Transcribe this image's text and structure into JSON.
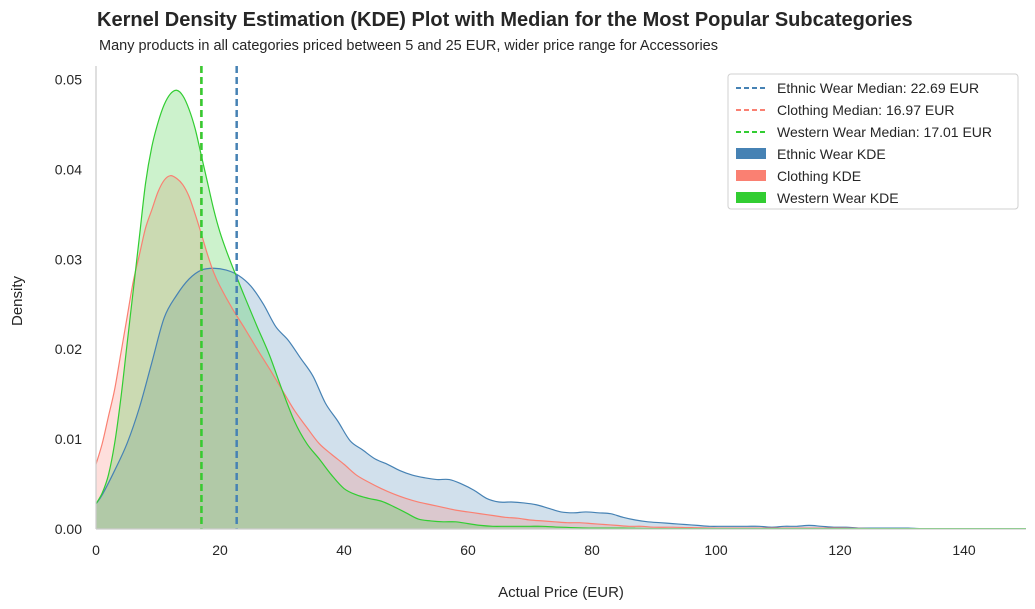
{
  "chart_data": {
    "type": "area",
    "title": "Kernel Density Estimation (KDE) Plot with Median for the Most Popular Subcategories",
    "subtitle": "Many products in all categories priced between 5 and 25 EUR, wider price range for Accessories",
    "xlabel": "Actual Price (EUR)",
    "ylabel": "Density",
    "xlim": [
      0,
      150
    ],
    "ylim": [
      0,
      0.0515
    ],
    "xticks": [
      0,
      20,
      40,
      60,
      80,
      100,
      120,
      140
    ],
    "xtick_labels": [
      "0",
      "20",
      "40",
      "60",
      "80",
      "100",
      "120",
      "140"
    ],
    "yticks": [
      0,
      0.01,
      0.02,
      0.03,
      0.04,
      0.05
    ],
    "ytick_labels": [
      "0.00",
      "0.01",
      "0.02",
      "0.03",
      "0.04",
      "0.05"
    ],
    "legend_position": "top-right",
    "series": [
      {
        "name": "Ethnic Wear KDE",
        "color": "#4682b4",
        "median": 22.69,
        "median_label": "Ethnic Wear Median: 22.69 EUR",
        "x": [
          0,
          1,
          3,
          5,
          7,
          9,
          11,
          13,
          15,
          17,
          19,
          21,
          23,
          25,
          27,
          29,
          31,
          33,
          35,
          37,
          39,
          41,
          43,
          45,
          47,
          49,
          51,
          53,
          55,
          57,
          59,
          61,
          63,
          65,
          67,
          69,
          71,
          73,
          75,
          77,
          79,
          81,
          83,
          85,
          87,
          89,
          91,
          93,
          95,
          97,
          99,
          101,
          103,
          105,
          107,
          109,
          111,
          113,
          115,
          117,
          119,
          121,
          123,
          125,
          127,
          129,
          131,
          133,
          135,
          137,
          139,
          141,
          143,
          145,
          147,
          150
        ],
        "values": [
          0.0028,
          0.0038,
          0.0065,
          0.0095,
          0.0135,
          0.0185,
          0.0235,
          0.026,
          0.0278,
          0.0288,
          0.029,
          0.0288,
          0.0282,
          0.027,
          0.025,
          0.0225,
          0.021,
          0.019,
          0.017,
          0.014,
          0.012,
          0.0098,
          0.0088,
          0.0078,
          0.0072,
          0.0065,
          0.006,
          0.0057,
          0.0055,
          0.0055,
          0.005,
          0.0043,
          0.0034,
          0.003,
          0.003,
          0.0029,
          0.0027,
          0.0023,
          0.0019,
          0.0018,
          0.0019,
          0.0018,
          0.0017,
          0.0013,
          0.001,
          0.0008,
          0.0007,
          0.0006,
          0.0005,
          0.0004,
          0.0003,
          0.0003,
          0.0003,
          0.0003,
          0.0003,
          0.0002,
          0.0003,
          0.0003,
          0.0004,
          0.0003,
          0.0002,
          0.0002,
          0.0001,
          0.0001,
          0.0001,
          0.0001,
          0.0001,
          5e-05,
          5e-05,
          5e-05,
          5e-05,
          5e-05,
          5e-05,
          5e-05,
          5e-05,
          5e-05
        ]
      },
      {
        "name": "Clothing KDE",
        "color": "#fa8072",
        "median": 16.97,
        "median_label": "Clothing Median: 16.97 EUR",
        "x": [
          0,
          1,
          2,
          3,
          4,
          5,
          6,
          7,
          8,
          9,
          10,
          11,
          12,
          13,
          14,
          15,
          16,
          17,
          18,
          19,
          20,
          22,
          24,
          26,
          28,
          30,
          32,
          34,
          36,
          38,
          40,
          42,
          44,
          46,
          48,
          50,
          52,
          54,
          56,
          58,
          60,
          62,
          64,
          66,
          68,
          70,
          72,
          74,
          76,
          78,
          80,
          82,
          84,
          86,
          88,
          90,
          93,
          96,
          100,
          105,
          110,
          115,
          120,
          125,
          130,
          140,
          150
        ],
        "values": [
          0.0072,
          0.0095,
          0.0125,
          0.0155,
          0.0195,
          0.0235,
          0.0275,
          0.0305,
          0.0335,
          0.0355,
          0.0375,
          0.0388,
          0.0393,
          0.039,
          0.0383,
          0.037,
          0.035,
          0.0328,
          0.0305,
          0.0285,
          0.027,
          0.0245,
          0.0223,
          0.02,
          0.0178,
          0.0155,
          0.0132,
          0.0113,
          0.0095,
          0.0083,
          0.0072,
          0.006,
          0.0052,
          0.0045,
          0.0039,
          0.0034,
          0.003,
          0.0027,
          0.0024,
          0.0021,
          0.0019,
          0.0017,
          0.0015,
          0.0013,
          0.0012,
          0.001,
          0.0009,
          0.0008,
          0.0007,
          0.0007,
          0.0006,
          0.0005,
          0.0004,
          0.0003,
          0.0003,
          0.0002,
          0.0002,
          0.00015,
          0.0001,
          0.0001,
          0.0001,
          0.0001,
          0.0001,
          5e-05,
          5e-05,
          5e-05,
          5e-05
        ]
      },
      {
        "name": "Western Wear KDE",
        "color": "#32cd32",
        "median": 17.01,
        "median_label": "Western Wear Median: 17.01 EUR",
        "x": [
          0,
          1,
          2,
          3,
          4,
          5,
          6,
          7,
          8,
          9,
          10,
          11,
          12,
          13,
          14,
          15,
          16,
          17,
          18,
          19,
          20,
          21,
          22,
          23,
          24,
          26,
          28,
          30,
          32,
          34,
          36,
          38,
          40,
          42,
          44,
          46,
          48,
          50,
          52,
          54,
          56,
          58,
          60,
          62,
          64,
          66,
          68,
          70,
          72,
          75,
          80,
          85,
          90,
          100,
          110,
          120,
          130,
          140,
          150
        ],
        "values": [
          0.0028,
          0.004,
          0.006,
          0.0095,
          0.0145,
          0.0205,
          0.0265,
          0.0325,
          0.0385,
          0.0425,
          0.0452,
          0.0472,
          0.0484,
          0.0488,
          0.0482,
          0.0467,
          0.0445,
          0.0415,
          0.0385,
          0.0355,
          0.033,
          0.031,
          0.0292,
          0.0275,
          0.0258,
          0.0225,
          0.0193,
          0.0155,
          0.012,
          0.0095,
          0.0078,
          0.006,
          0.0045,
          0.0038,
          0.0034,
          0.0031,
          0.0025,
          0.0018,
          0.0011,
          0.0009,
          0.0008,
          0.0008,
          0.0006,
          0.0004,
          0.0003,
          0.0003,
          0.0003,
          0.0003,
          0.0003,
          0.0002,
          0.0001,
          0.0001,
          5e-05,
          5e-05,
          5e-05,
          5e-05,
          5e-05,
          5e-05,
          5e-05
        ]
      }
    ]
  }
}
